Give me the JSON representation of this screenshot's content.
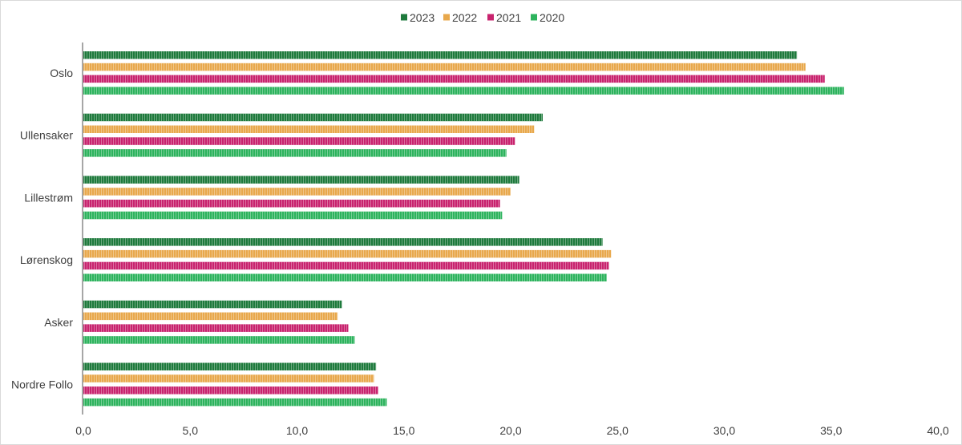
{
  "chart_data": {
    "type": "bar",
    "orientation": "horizontal",
    "categories": [
      "Oslo",
      "Ullensaker",
      "Lillestrøm",
      "Lørenskog",
      "Asker",
      "Nordre Follo"
    ],
    "series": [
      {
        "name": "2023",
        "color": "#1e7a3c",
        "values": [
          33.4,
          21.5,
          20.4,
          24.3,
          12.1,
          13.7
        ]
      },
      {
        "name": "2022",
        "color": "#e8a84c",
        "values": [
          33.8,
          21.1,
          20.0,
          24.7,
          11.9,
          13.6
        ]
      },
      {
        "name": "2021",
        "color": "#c8236e",
        "values": [
          34.7,
          20.2,
          19.5,
          24.6,
          12.4,
          13.8
        ]
      },
      {
        "name": "2020",
        "color": "#2db35d",
        "values": [
          35.6,
          19.8,
          19.6,
          24.5,
          12.7,
          14.2
        ]
      }
    ],
    "xlim": [
      0,
      40
    ],
    "xticks": [
      "0,0",
      "5,0",
      "10,0",
      "15,0",
      "20,0",
      "25,0",
      "30,0",
      "35,0",
      "40,0"
    ],
    "legend_position": "top-center",
    "grid": false
  }
}
